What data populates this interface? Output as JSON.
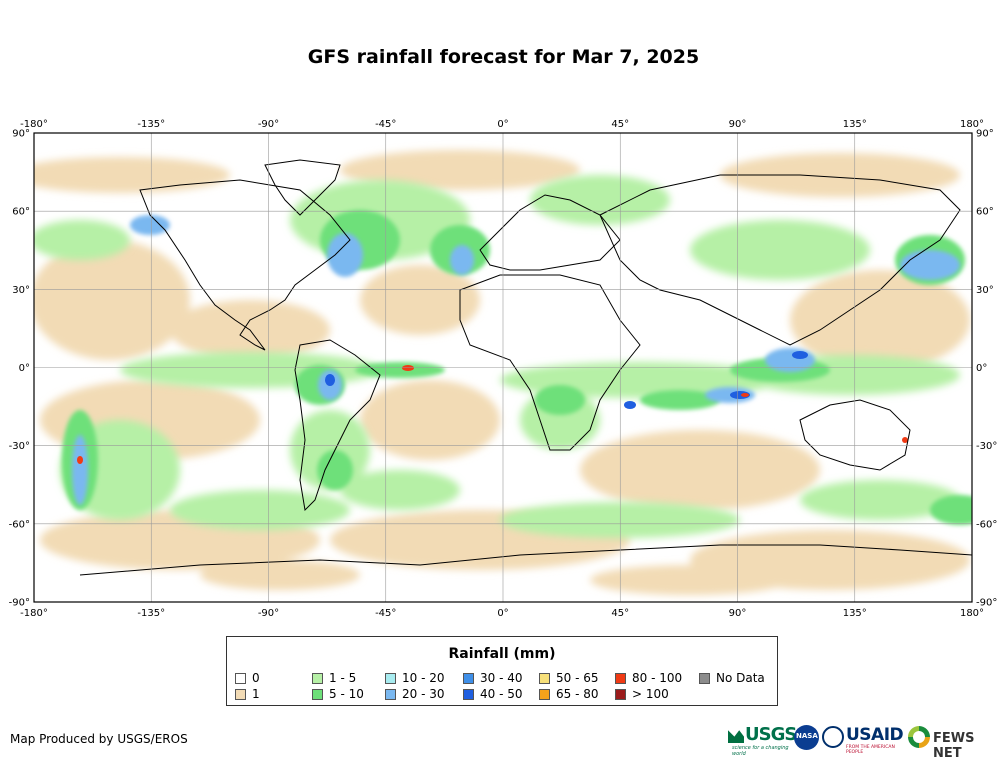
{
  "title": "GFS rainfall forecast for Mar 7, 2025",
  "map": {
    "projection": "equirectangular",
    "lon_range": [
      -180,
      180
    ],
    "lat_range": [
      -90,
      90
    ],
    "lon_ticks": [
      "-180°",
      "-135°",
      "-90°",
      "-45°",
      "0°",
      "45°",
      "90°",
      "135°",
      "180°"
    ],
    "lat_ticks": [
      "90°",
      "60°",
      "30°",
      "0°",
      "-30°",
      "-60°",
      "-90°"
    ],
    "lon_tick_values": [
      -180,
      -135,
      -90,
      -45,
      0,
      45,
      90,
      135,
      180
    ],
    "lat_tick_values": [
      90,
      60,
      30,
      0,
      -30,
      -60,
      -90
    ],
    "grid": true
  },
  "legend": {
    "title": "Rainfall (mm)",
    "classes": [
      {
        "label": "0",
        "color": "#ffffff"
      },
      {
        "label": "1",
        "color": "#f2dbb5"
      },
      {
        "label": "1 - 5",
        "color": "#b6f0a6"
      },
      {
        "label": "5 - 10",
        "color": "#6ee07a"
      },
      {
        "label": "10 - 20",
        "color": "#a8ecf0"
      },
      {
        "label": "20 - 30",
        "color": "#7ab8f0"
      },
      {
        "label": "30 - 40",
        "color": "#3f8fe8"
      },
      {
        "label": "40 - 50",
        "color": "#1f5fe0"
      },
      {
        "label": "50 - 65",
        "color": "#f7e07a"
      },
      {
        "label": "65 - 80",
        "color": "#f5a21b"
      },
      {
        "label": "80 - 100",
        "color": "#f03a14"
      },
      {
        "label": "> 100",
        "color": "#9b1c1c"
      },
      {
        "label": "No Data",
        "color": "#8c8c8c"
      }
    ]
  },
  "footer": {
    "credit": "Map Produced by USGS/EROS",
    "logos": {
      "usgs": "USGS",
      "usgs_tagline": "science for a changing world",
      "nasa": "NASA",
      "usaid": "USAID",
      "usaid_tagline": "FROM THE AMERICAN PEOPLE",
      "fews": "FEWS NET"
    }
  }
}
